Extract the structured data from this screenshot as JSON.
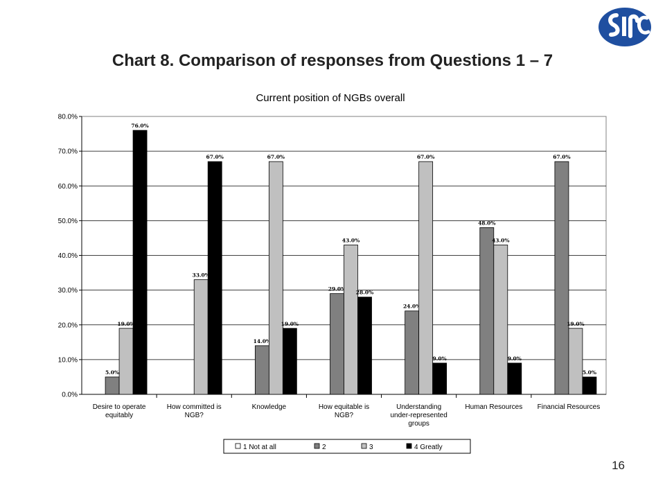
{
  "slide": {
    "title": "Chart 8. Comparison of responses from Questions 1 – 7",
    "page_number": "16"
  },
  "logo": {
    "icon": "sirc-logo-icon",
    "color": "#1f4fa0"
  },
  "chart_data": {
    "type": "bar",
    "title": "Current position of NGBs overall",
    "xlabel": "",
    "ylabel": "",
    "ylim": [
      0,
      80
    ],
    "yticks": [
      "0.0%",
      "10.0%",
      "20.0%",
      "30.0%",
      "40.0%",
      "50.0%",
      "60.0%",
      "70.0%",
      "80.0%"
    ],
    "grid": true,
    "legend_position": "bottom",
    "categories": [
      [
        "Desire to operate",
        "equitably"
      ],
      [
        "How committed is",
        "NGB?"
      ],
      [
        "Knowledge"
      ],
      [
        "How equitable is",
        "NGB?"
      ],
      [
        "Understanding",
        "under-represented",
        "groups"
      ],
      [
        "Human Resources"
      ],
      [
        "Financial Resources"
      ]
    ],
    "series": [
      {
        "name": "1 Not at all",
        "color": "#ffffff",
        "values": [
          null,
          null,
          null,
          null,
          null,
          null,
          null
        ],
        "labels": [
          "",
          "",
          "",
          "",
          "",
          "",
          ""
        ]
      },
      {
        "name": "2",
        "color": "#808080",
        "values": [
          5,
          null,
          14,
          29,
          24,
          48,
          67
        ],
        "labels": [
          "5.0%",
          "",
          "14.0%",
          "29.0%",
          "24.0%",
          "48.0%",
          "67.0%"
        ]
      },
      {
        "name": "3",
        "color": "#c0c0c0",
        "values": [
          19,
          33,
          67,
          43,
          67,
          43,
          19
        ],
        "labels": [
          "19.0%",
          "33.0%",
          "67.0%",
          "43.0%",
          "67.0%",
          "43.0%",
          "19.0%"
        ]
      },
      {
        "name": "4 Greatly",
        "color": "#000000",
        "values": [
          76,
          67,
          19,
          28,
          9,
          9,
          5
        ],
        "labels": [
          "76.0%",
          "67.0%",
          "19.0%",
          "28.0%",
          "9.0%",
          "9.0%",
          "5.0%"
        ]
      }
    ]
  }
}
